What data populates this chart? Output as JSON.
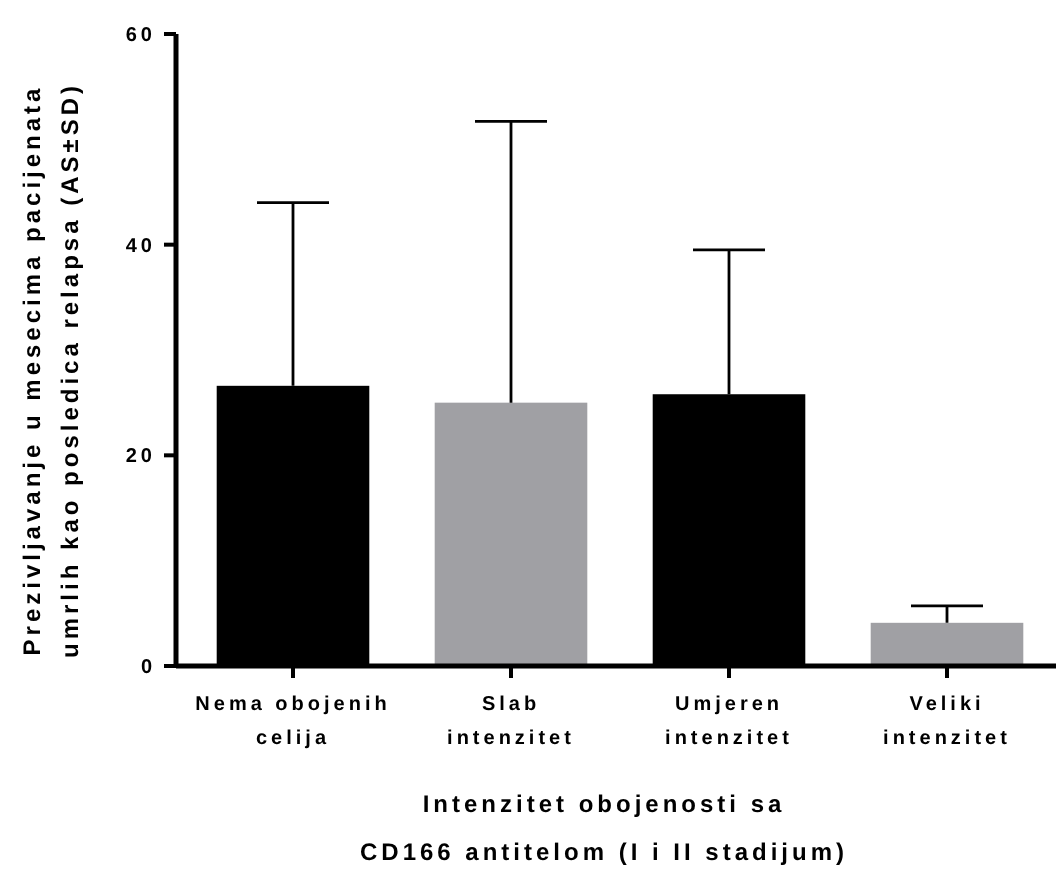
{
  "chart_data": {
    "type": "bar",
    "xlabel": "Intenzitet obojenosti sa\nCD166 antitelom (I i II stadijum)",
    "ylabel": "Prezivljavanje u mesecima pacijenata\numrlih kao posledica relapsa (AS±SD)",
    "categories": [
      "Nema obojenih\ncelija",
      "Slab\nintenzitet",
      "Umjeren\nintenzitet",
      "Veliki\nintenzitet"
    ],
    "values": [
      26.6,
      25.0,
      25.8,
      4.1
    ],
    "colors": [
      "#000000",
      "#a0a0a4",
      "#000000",
      "#a0a0a4"
    ],
    "errors": [
      [
        26.6,
        44.0
      ],
      [
        25.0,
        51.7
      ],
      [
        25.8,
        39.5
      ],
      [
        4.1,
        5.7
      ]
    ],
    "ylim": [
      0,
      60
    ],
    "yticks": [
      0,
      20,
      40,
      60
    ],
    "grid": false
  }
}
